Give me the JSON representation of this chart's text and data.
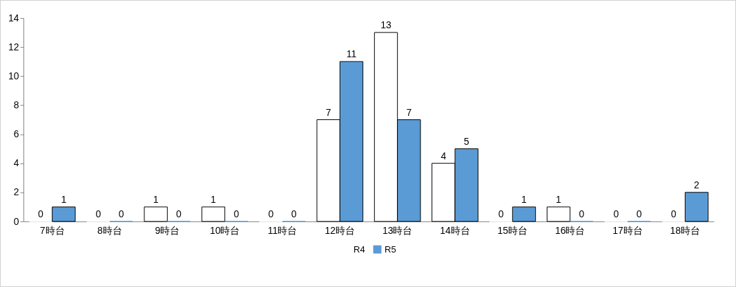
{
  "chart_data": {
    "type": "bar",
    "categories": [
      "7時台",
      "8時台",
      "9時台",
      "10時台",
      "11時台",
      "12時台",
      "13時台",
      "14時台",
      "15時台",
      "16時台",
      "17時台",
      "18時台"
    ],
    "series": [
      {
        "name": "R4",
        "color": "#ffffff",
        "values": [
          0,
          0,
          1,
          1,
          0,
          7,
          13,
          4,
          0,
          1,
          0,
          0
        ]
      },
      {
        "name": "R5",
        "color": "#5b9bd5",
        "values": [
          1,
          0,
          0,
          0,
          0,
          11,
          7,
          5,
          1,
          0,
          0,
          2
        ]
      }
    ],
    "ylim": [
      0,
      14
    ],
    "yticks": [
      0,
      2,
      4,
      6,
      8,
      10,
      12,
      14
    ],
    "grid": false,
    "legend": "bottom",
    "data_labels": true
  }
}
